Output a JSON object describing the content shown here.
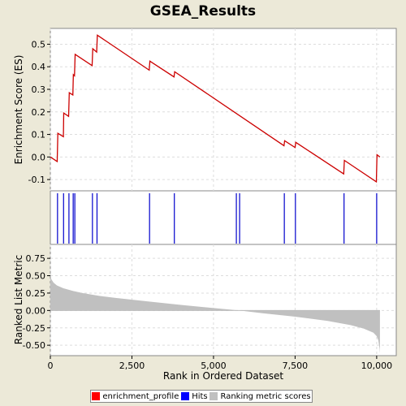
{
  "title": "GSEA_Results",
  "chart_data": [
    {
      "type": "line",
      "panel": "enrichment",
      "ylabel": "Enrichment Score (ES)",
      "ylim": [
        -0.15,
        0.57
      ],
      "yticks": [
        -0.1,
        0.0,
        0.1,
        0.2,
        0.3,
        0.4,
        0.5
      ],
      "ytick_labels": [
        "-0.1",
        "0.0",
        "0.1",
        "0.2",
        "0.3",
        "0.4",
        "0.5"
      ],
      "grid": true,
      "color": "#cc0000",
      "x": [
        0,
        210,
        230,
        400,
        410,
        560,
        580,
        690,
        705,
        740,
        760,
        1280,
        1300,
        1420,
        1440,
        3030,
        3050,
        3790,
        3810,
        7160,
        7180,
        7500,
        7520,
        8990,
        9010,
        9990,
        10010,
        10100
      ],
      "y": [
        0.0,
        -0.02,
        0.105,
        0.09,
        0.195,
        0.18,
        0.285,
        0.275,
        0.365,
        0.36,
        0.455,
        0.405,
        0.48,
        0.465,
        0.54,
        0.385,
        0.425,
        0.355,
        0.378,
        0.05,
        0.072,
        0.042,
        0.065,
        -0.075,
        -0.015,
        -0.11,
        0.01,
        0.0
      ]
    },
    {
      "type": "scatter",
      "panel": "hits",
      "color": "#0000cc",
      "x": [
        220,
        405,
        570,
        700,
        750,
        1290,
        1430,
        3040,
        3800,
        5700,
        5800,
        7170,
        7510,
        9000,
        10000
      ]
    },
    {
      "type": "area",
      "panel": "ranking",
      "ylabel": "Ranked List Metric",
      "xlabel": "Rank in Ordered Dataset",
      "ylim": [
        -0.65,
        0.95
      ],
      "yticks": [
        -0.5,
        -0.25,
        0.0,
        0.25,
        0.5,
        0.75
      ],
      "ytick_labels": [
        "-0.50",
        "-0.25",
        "0.00",
        "0.25",
        "0.50",
        "0.75"
      ],
      "xlim": [
        0,
        10600
      ],
      "xticks": [
        0,
        2500,
        5000,
        7500,
        10000
      ],
      "xtick_labels": [
        "0",
        "2,500",
        "5,000",
        "7,500",
        "10,000"
      ],
      "color": "#c0c0c0",
      "x": [
        0,
        30,
        100,
        200,
        400,
        700,
        1000,
        1500,
        2000,
        3000,
        4000,
        5000,
        5800,
        6500,
        7500,
        8500,
        9200,
        9600,
        9900,
        10000,
        10050,
        10090,
        10100
      ],
      "y": [
        0.55,
        0.45,
        0.4,
        0.36,
        0.32,
        0.28,
        0.25,
        0.21,
        0.18,
        0.13,
        0.08,
        0.035,
        0.0,
        -0.04,
        -0.09,
        -0.15,
        -0.21,
        -0.26,
        -0.32,
        -0.37,
        -0.43,
        -0.55,
        -0.62
      ]
    }
  ],
  "legend": {
    "items": [
      {
        "label": "enrichment_profile",
        "color": "#ff0000"
      },
      {
        "label": "Hits",
        "color": "#0000ff"
      },
      {
        "label": "Ranking metric scores",
        "color": "#c0c0c0"
      }
    ]
  }
}
